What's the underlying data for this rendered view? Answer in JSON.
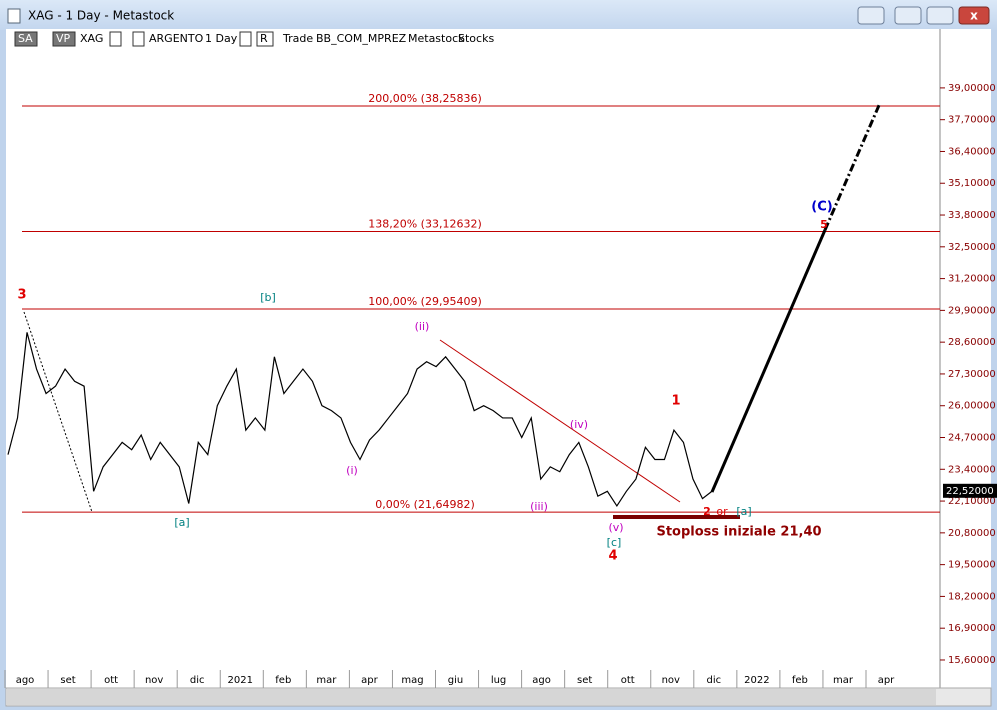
{
  "window": {
    "title": "XAG - 1 Day - Metastock"
  },
  "toolbar": [
    "SA",
    "VP",
    "XAG",
    "ARGENTO",
    "1 Day",
    "R",
    "Trade",
    "BB_COM_MPREZ",
    "Metastock",
    "Stocks"
  ],
  "chart": {
    "type": "line",
    "color": "#000000",
    "categories": [
      "ago",
      "set",
      "ott",
      "nov",
      "dic",
      "2021",
      "feb",
      "mar",
      "apr",
      "mag",
      "giu",
      "lug",
      "ago",
      "set",
      "ott",
      "nov",
      "dic",
      "2022",
      "feb",
      "mar",
      "apr"
    ],
    "values": [
      24.0,
      25.5,
      29.0,
      27.5,
      26.5,
      26.8,
      27.5,
      27.0,
      26.8,
      22.5,
      23.5,
      24.0,
      24.5,
      24.2,
      24.8,
      23.8,
      24.5,
      24.0,
      23.5,
      22.0,
      24.5,
      24.0,
      26.0,
      26.8,
      27.5,
      25.0,
      25.5,
      25.0,
      28.0,
      26.5,
      27.0,
      27.5,
      27.0,
      26.0,
      25.8,
      25.5,
      24.5,
      23.8,
      24.6,
      25.0,
      25.5,
      26.0,
      26.5,
      27.5,
      27.8,
      27.6,
      28.0,
      27.5,
      27.0,
      25.8,
      26.0,
      25.8,
      25.5,
      25.5,
      24.7,
      25.5,
      23.0,
      23.5,
      23.3,
      24.0,
      24.5,
      23.5,
      22.3,
      22.5,
      21.9,
      22.5,
      23.0,
      24.3,
      23.8,
      23.8,
      25.0,
      24.5,
      23.0,
      22.2,
      22.5
    ],
    "ylim": [
      15.19,
      41.45
    ],
    "yticks": [
      {
        "value": 39.0,
        "label": "39,00000"
      },
      {
        "value": 37.7,
        "label": "37,70000"
      },
      {
        "value": 36.4,
        "label": "36,40000"
      },
      {
        "value": 35.1,
        "label": "35,10000"
      },
      {
        "value": 33.8,
        "label": "33,80000"
      },
      {
        "value": 32.5,
        "label": "32,50000"
      },
      {
        "value": 31.2,
        "label": "31,20000"
      },
      {
        "value": 29.9,
        "label": "29,90000"
      },
      {
        "value": 28.6,
        "label": "28,60000"
      },
      {
        "value": 27.3,
        "label": "27,30000"
      },
      {
        "value": 26.0,
        "label": "26,00000"
      },
      {
        "value": 24.7,
        "label": "24,70000"
      },
      {
        "value": 23.4,
        "label": "23,40000"
      },
      {
        "value": 22.1,
        "label": "22,10000"
      },
      {
        "value": 20.8,
        "label": "20,80000"
      },
      {
        "value": 19.5,
        "label": "19,50000"
      },
      {
        "value": 18.2,
        "label": "18,20000"
      },
      {
        "value": 16.9,
        "label": "16,90000"
      },
      {
        "value": 15.6,
        "label": "15,60000"
      }
    ],
    "last_price": {
      "value": 22.52,
      "label": "22,52000"
    },
    "levels": [
      {
        "value": 38.25836,
        "label": "200,00% (38,25836)"
      },
      {
        "value": 33.12632,
        "label": "138,20% (33,12632)"
      },
      {
        "value": 29.95409,
        "label": "100,00% (29,95409)"
      },
      {
        "value": 21.64982,
        "label": "0,00% (21,64982)"
      }
    ],
    "annotations": [
      "3",
      "[b]",
      "(ii)",
      "(i)",
      "[a]",
      "(iii)",
      "(iv)",
      "(v)",
      "[c]",
      "4",
      "1",
      "2",
      "or",
      "[a]",
      "(C)",
      "5",
      "Stoploss iniziale 21,40"
    ]
  }
}
